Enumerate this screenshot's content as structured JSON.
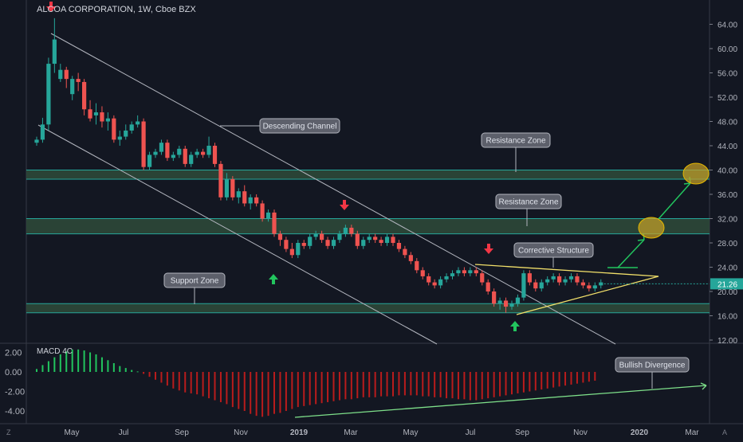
{
  "chart_data": [
    {
      "type": "candlestick",
      "title": "ALCOA CORPORATION, 1W, Cboe BZX",
      "ylim": [
        12,
        66
      ],
      "y_ticks": [
        "64.00",
        "60.00",
        "56.00",
        "52.00",
        "48.00",
        "44.00",
        "40.00",
        "36.00",
        "32.00",
        "28.00",
        "24.00",
        "20.00",
        "16.00",
        "12.00"
      ],
      "x_ticks": [
        "May",
        "Jul",
        "Sep",
        "Nov",
        "2019",
        "Mar",
        "May",
        "Jul",
        "Sep",
        "Nov",
        "2020",
        "Mar"
      ],
      "last_price": "21.26",
      "candles": [
        {
          "o": 44.5,
          "h": 45.5,
          "l": 44.0,
          "c": 45.0
        },
        {
          "o": 45.0,
          "h": 48.6,
          "l": 44.5,
          "c": 47.5
        },
        {
          "o": 47.5,
          "h": 58.5,
          "l": 46.5,
          "c": 57.5
        },
        {
          "o": 57.5,
          "h": 65.0,
          "l": 56.0,
          "c": 61.5
        },
        {
          "o": 55.0,
          "h": 57.5,
          "l": 54.5,
          "c": 56.5
        },
        {
          "o": 56.5,
          "h": 57.0,
          "l": 53.5,
          "c": 55.0
        },
        {
          "o": 52.5,
          "h": 55.5,
          "l": 51.5,
          "c": 55.0
        },
        {
          "o": 55.0,
          "h": 56.0,
          "l": 53.0,
          "c": 54.5
        },
        {
          "o": 54.5,
          "h": 55.0,
          "l": 49.0,
          "c": 50.0
        },
        {
          "o": 50.0,
          "h": 51.5,
          "l": 48.0,
          "c": 48.5
        },
        {
          "o": 49.0,
          "h": 51.0,
          "l": 47.5,
          "c": 49.5
        },
        {
          "o": 49.5,
          "h": 50.5,
          "l": 47.0,
          "c": 48.0
        },
        {
          "o": 48.0,
          "h": 49.5,
          "l": 46.5,
          "c": 48.5
        },
        {
          "o": 48.5,
          "h": 49.0,
          "l": 44.5,
          "c": 45.0
        },
        {
          "o": 45.0,
          "h": 46.5,
          "l": 44.0,
          "c": 45.5
        },
        {
          "o": 45.5,
          "h": 47.5,
          "l": 45.0,
          "c": 46.5
        },
        {
          "o": 46.5,
          "h": 48.0,
          "l": 46.0,
          "c": 47.5
        },
        {
          "o": 47.5,
          "h": 49.0,
          "l": 47.0,
          "c": 48.0
        },
        {
          "o": 48.0,
          "h": 48.5,
          "l": 40.0,
          "c": 40.5
        },
        {
          "o": 40.5,
          "h": 43.0,
          "l": 40.0,
          "c": 42.5
        },
        {
          "o": 42.5,
          "h": 43.5,
          "l": 42.0,
          "c": 43.0
        },
        {
          "o": 43.0,
          "h": 45.0,
          "l": 42.5,
          "c": 44.5
        },
        {
          "o": 44.5,
          "h": 45.0,
          "l": 41.5,
          "c": 42.0
        },
        {
          "o": 42.0,
          "h": 43.0,
          "l": 41.5,
          "c": 42.5
        },
        {
          "o": 42.5,
          "h": 44.0,
          "l": 42.0,
          "c": 43.5
        },
        {
          "o": 43.5,
          "h": 44.0,
          "l": 40.5,
          "c": 41.0
        },
        {
          "o": 41.0,
          "h": 43.0,
          "l": 40.5,
          "c": 42.5
        },
        {
          "o": 42.5,
          "h": 43.5,
          "l": 42.0,
          "c": 43.0
        },
        {
          "o": 43.0,
          "h": 43.5,
          "l": 42.0,
          "c": 42.5
        },
        {
          "o": 42.5,
          "h": 45.5,
          "l": 42.0,
          "c": 44.0
        },
        {
          "o": 44.0,
          "h": 44.5,
          "l": 40.5,
          "c": 41.0
        },
        {
          "o": 41.0,
          "h": 41.5,
          "l": 35.0,
          "c": 35.5
        },
        {
          "o": 35.5,
          "h": 39.5,
          "l": 35.0,
          "c": 38.5
        },
        {
          "o": 38.5,
          "h": 39.0,
          "l": 35.0,
          "c": 35.5
        },
        {
          "o": 35.5,
          "h": 37.0,
          "l": 34.5,
          "c": 36.5
        },
        {
          "o": 36.5,
          "h": 37.5,
          "l": 34.0,
          "c": 34.5
        },
        {
          "o": 34.5,
          "h": 36.0,
          "l": 33.5,
          "c": 35.5
        },
        {
          "o": 35.5,
          "h": 36.0,
          "l": 34.0,
          "c": 34.5
        },
        {
          "o": 34.5,
          "h": 35.0,
          "l": 31.5,
          "c": 32.0
        },
        {
          "o": 32.0,
          "h": 33.5,
          "l": 31.5,
          "c": 33.0
        },
        {
          "o": 33.0,
          "h": 33.5,
          "l": 29.0,
          "c": 29.5
        },
        {
          "o": 29.5,
          "h": 30.0,
          "l": 27.5,
          "c": 28.5
        },
        {
          "o": 28.5,
          "h": 29.0,
          "l": 26.5,
          "c": 27.0
        },
        {
          "o": 27.0,
          "h": 28.0,
          "l": 25.5,
          "c": 26.0
        },
        {
          "o": 26.0,
          "h": 28.5,
          "l": 25.5,
          "c": 28.0
        },
        {
          "o": 28.0,
          "h": 28.5,
          "l": 27.0,
          "c": 27.5
        },
        {
          "o": 27.5,
          "h": 29.5,
          "l": 27.0,
          "c": 29.0
        },
        {
          "o": 29.0,
          "h": 30.0,
          "l": 28.5,
          "c": 29.5
        },
        {
          "o": 29.5,
          "h": 30.0,
          "l": 28.0,
          "c": 28.5
        },
        {
          "o": 28.5,
          "h": 29.0,
          "l": 27.0,
          "c": 27.5
        },
        {
          "o": 27.5,
          "h": 29.0,
          "l": 27.0,
          "c": 28.5
        },
        {
          "o": 28.5,
          "h": 30.0,
          "l": 28.0,
          "c": 29.5
        },
        {
          "o": 29.5,
          "h": 31.0,
          "l": 29.0,
          "c": 30.5
        },
        {
          "o": 30.5,
          "h": 31.0,
          "l": 29.0,
          "c": 29.5
        },
        {
          "o": 29.5,
          "h": 30.0,
          "l": 27.0,
          "c": 27.5
        },
        {
          "o": 27.5,
          "h": 29.0,
          "l": 27.0,
          "c": 28.5
        },
        {
          "o": 28.5,
          "h": 29.5,
          "l": 28.0,
          "c": 29.0
        },
        {
          "o": 29.0,
          "h": 29.5,
          "l": 28.0,
          "c": 28.5
        },
        {
          "o": 28.5,
          "h": 29.0,
          "l": 27.5,
          "c": 28.0
        },
        {
          "o": 28.0,
          "h": 29.5,
          "l": 27.5,
          "c": 29.0
        },
        {
          "o": 29.0,
          "h": 29.5,
          "l": 27.5,
          "c": 28.0
        },
        {
          "o": 28.0,
          "h": 28.5,
          "l": 26.5,
          "c": 27.0
        },
        {
          "o": 27.0,
          "h": 27.5,
          "l": 25.5,
          "c": 26.0
        },
        {
          "o": 26.0,
          "h": 26.5,
          "l": 24.5,
          "c": 25.0
        },
        {
          "o": 25.0,
          "h": 25.5,
          "l": 23.0,
          "c": 23.5
        },
        {
          "o": 23.5,
          "h": 24.0,
          "l": 22.0,
          "c": 22.5
        },
        {
          "o": 22.5,
          "h": 23.0,
          "l": 21.0,
          "c": 21.5
        },
        {
          "o": 21.5,
          "h": 22.0,
          "l": 20.5,
          "c": 21.0
        },
        {
          "o": 21.0,
          "h": 22.5,
          "l": 20.5,
          "c": 22.0
        },
        {
          "o": 22.0,
          "h": 23.0,
          "l": 21.5,
          "c": 22.5
        },
        {
          "o": 22.5,
          "h": 23.5,
          "l": 22.0,
          "c": 23.0
        },
        {
          "o": 23.0,
          "h": 24.0,
          "l": 22.5,
          "c": 23.5
        },
        {
          "o": 23.5,
          "h": 24.0,
          "l": 22.5,
          "c": 23.0
        },
        {
          "o": 23.0,
          "h": 24.0,
          "l": 22.5,
          "c": 23.5
        },
        {
          "o": 23.5,
          "h": 24.0,
          "l": 22.5,
          "c": 23.0
        },
        {
          "o": 23.0,
          "h": 23.5,
          "l": 21.0,
          "c": 21.5
        },
        {
          "o": 21.5,
          "h": 22.0,
          "l": 19.5,
          "c": 20.0
        },
        {
          "o": 20.0,
          "h": 20.5,
          "l": 17.5,
          "c": 18.0
        },
        {
          "o": 18.0,
          "h": 19.0,
          "l": 17.0,
          "c": 18.5
        },
        {
          "o": 18.5,
          "h": 19.0,
          "l": 16.5,
          "c": 17.5
        },
        {
          "o": 17.5,
          "h": 18.5,
          "l": 17.0,
          "c": 18.0
        },
        {
          "o": 18.0,
          "h": 19.5,
          "l": 17.5,
          "c": 19.0
        },
        {
          "o": 19.0,
          "h": 23.5,
          "l": 18.5,
          "c": 23.0
        },
        {
          "o": 23.0,
          "h": 23.5,
          "l": 21.0,
          "c": 21.5
        },
        {
          "o": 21.5,
          "h": 22.0,
          "l": 20.0,
          "c": 20.5
        },
        {
          "o": 20.5,
          "h": 22.0,
          "l": 20.0,
          "c": 21.5
        },
        {
          "o": 21.5,
          "h": 22.5,
          "l": 21.0,
          "c": 22.0
        },
        {
          "o": 22.0,
          "h": 23.0,
          "l": 21.5,
          "c": 22.5
        },
        {
          "o": 22.5,
          "h": 23.0,
          "l": 21.0,
          "c": 21.5
        },
        {
          "o": 21.5,
          "h": 22.5,
          "l": 21.0,
          "c": 22.0
        },
        {
          "o": 22.0,
          "h": 23.0,
          "l": 21.5,
          "c": 22.5
        },
        {
          "o": 22.5,
          "h": 23.0,
          "l": 21.0,
          "c": 21.5
        },
        {
          "o": 21.5,
          "h": 22.0,
          "l": 20.5,
          "c": 21.0
        },
        {
          "o": 21.0,
          "h": 21.5,
          "l": 20.0,
          "c": 20.5
        },
        {
          "o": 20.5,
          "h": 21.5,
          "l": 20.0,
          "c": 21.0
        },
        {
          "o": 21.0,
          "h": 22.0,
          "l": 20.5,
          "c": 21.5
        }
      ],
      "zones": [
        {
          "label": "Resistance Zone",
          "from": 38.5,
          "to": 40.0
        },
        {
          "label": "Resistance Zone",
          "from": 29.5,
          "to": 32.0
        },
        {
          "label": "Support Zone",
          "from": 16.5,
          "to": 18.0
        }
      ],
      "annotations": [
        "Descending Channel",
        "Resistance Zone",
        "Resistance Zone",
        "Corrective Structure",
        "Support Zone"
      ],
      "colors": {
        "up": "#26a69a",
        "down": "#ef5350",
        "zone": "#26a69a",
        "zone_fill": "#2f4b3a",
        "triangle": "#f2e06a",
        "projection": "#22c55e",
        "target": "#c9a227"
      }
    },
    {
      "type": "bar",
      "title": "MACD 4C",
      "ylim": [
        -5.5,
        2.5
      ],
      "y_ticks": [
        "2.00",
        "0.00",
        "-2.00",
        "-4.00"
      ],
      "values": [
        0.3,
        0.7,
        1.1,
        1.5,
        1.8,
        2.1,
        2.3,
        2.3,
        2.2,
        2.0,
        1.8,
        1.5,
        1.2,
        0.9,
        0.6,
        0.4,
        0.2,
        0.05,
        -0.2,
        -0.5,
        -0.8,
        -1.1,
        -1.4,
        -1.7,
        -1.9,
        -2.1,
        -2.2,
        -2.3,
        -2.5,
        -2.7,
        -2.9,
        -3.1,
        -3.3,
        -3.6,
        -3.8,
        -4.0,
        -4.3,
        -4.5,
        -4.6,
        -4.5,
        -4.3,
        -4.2,
        -4.0,
        -3.8,
        -3.6,
        -3.5,
        -3.4,
        -3.3,
        -3.2,
        -3.1,
        -3.0,
        -2.9,
        -2.8,
        -2.8,
        -2.7,
        -2.6,
        -2.6,
        -2.6,
        -2.5,
        -2.5,
        -2.5,
        -2.4,
        -2.4,
        -2.4,
        -2.4,
        -2.5,
        -2.5,
        -2.6,
        -2.6,
        -2.7,
        -2.7,
        -2.8,
        -2.8,
        -2.9,
        -2.9,
        -2.8,
        -2.7,
        -2.6,
        -2.5,
        -2.4,
        -2.3,
        -2.2,
        -2.1,
        -2.0,
        -1.9,
        -1.8,
        -1.7,
        -1.6,
        -1.5,
        -1.4,
        -1.3,
        -1.2,
        -1.1,
        -1.0,
        -0.9
      ],
      "annotations": [
        "Bullish Divergence"
      ],
      "colors": {
        "positive": "#22c55e",
        "negative": "#b91c1c"
      }
    }
  ]
}
